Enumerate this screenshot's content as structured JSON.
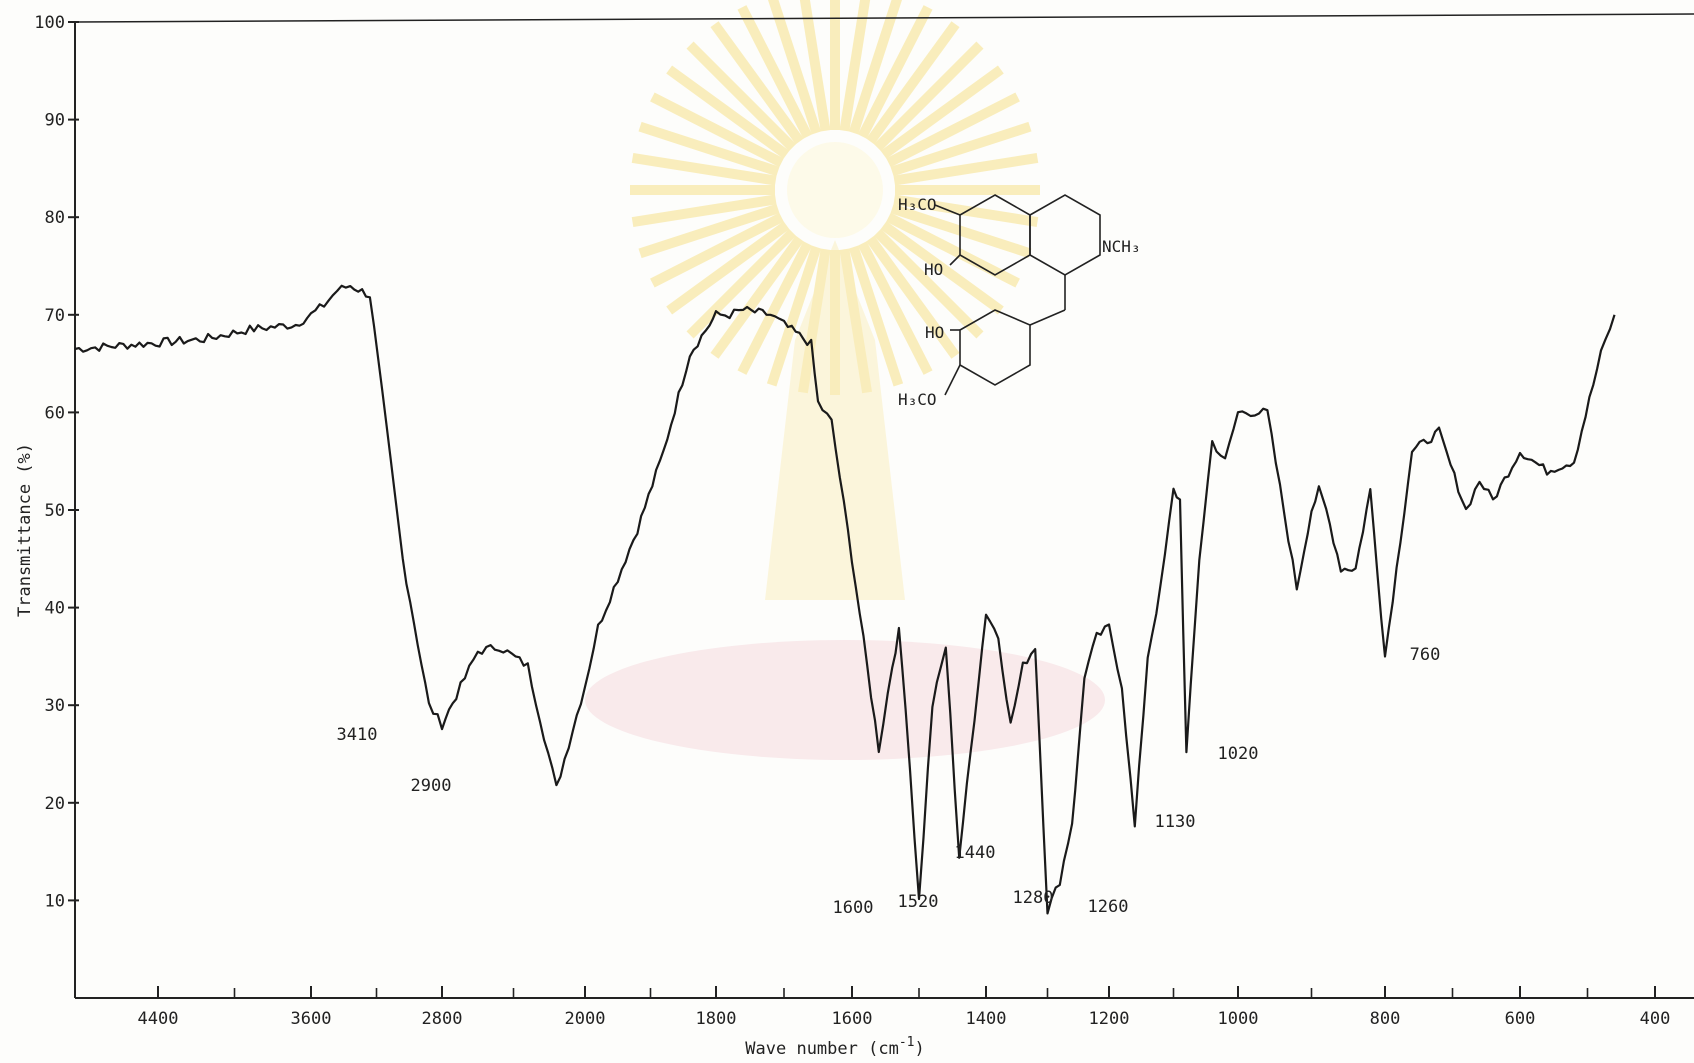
{
  "chart_data": {
    "type": "line",
    "title": "",
    "xlabel": "Wave number (cm",
    "xlabel_sup": "-1",
    "xlabel_close": ")",
    "ylabel": "Transmittance (%)",
    "ylim": [
      0,
      100
    ],
    "y_ticks": [
      "10",
      "20",
      "30",
      "40",
      "50",
      "60",
      "70",
      "80",
      "90",
      "100"
    ],
    "x_ticks": [
      "4400",
      "3600",
      "2800",
      "2000",
      "1800",
      "1600",
      "1400",
      "1200",
      "1000",
      "800",
      "600",
      "400"
    ],
    "grid": false,
    "series": [
      {
        "x": [
          0.0,
          0.3,
          0.6,
          0.9,
          1.0,
          1.1,
          1.2,
          1.3,
          1.45,
          1.7,
          1.9,
          2.0,
          2.1,
          2.25,
          2.4,
          2.6,
          2.8,
          3.0,
          3.1,
          3.4,
          3.6,
          3.8,
          3.95,
          4.0,
          4.1,
          4.2,
          4.4,
          4.5,
          4.7,
          4.75,
          4.85,
          5.0,
          5.2,
          5.3,
          5.35,
          5.4,
          5.5,
          5.6,
          5.7,
          5.8,
          6.0,
          6.1,
          6.2,
          6.3,
          6.4,
          6.5,
          6.6,
          6.7,
          6.75,
          6.8,
          6.9,
          7.0,
          7.1,
          7.2,
          7.3,
          7.4,
          7.5,
          7.55,
          7.6,
          7.7,
          7.8,
          7.9,
          8.0,
          8.2,
          8.4,
          8.5,
          8.55,
          8.6,
          8.7,
          8.8,
          8.9,
          9.0,
          9.2,
          9.4,
          9.6,
          9.7,
          9.8,
          10.0,
          10.2,
          10.4,
          10.6,
          10.7
        ],
        "y": [
          66.5,
          67.5,
          68.5,
          69.0,
          70.0,
          71.0,
          72.5,
          73.0,
          72.0,
          45.0,
          30.0,
          28.0,
          31.0,
          35.5,
          36.0,
          34.0,
          21.5,
          32.0,
          38.0,
          48.0,
          56.0,
          66.0,
          69.0,
          70.0,
          70.0,
          70.5,
          70.0,
          69.0,
          67.0,
          61.0,
          59.0,
          45.0,
          25.5,
          34.0,
          37.5,
          30.0,
          10.0,
          30.0,
          36.0,
          14.5,
          39.5,
          37.0,
          28.0,
          34.0,
          36.0,
          9.0,
          12.0,
          18.0,
          25.0,
          33.0,
          37.0,
          38.0,
          32.0,
          17.5,
          35.0,
          42.0,
          52.0,
          51.0,
          25.0,
          45.0,
          57.0,
          55.0,
          60.0,
          60.0,
          42.0,
          50.0,
          52.0,
          50.0,
          44.0,
          44.0,
          52.0,
          35.0,
          56.0,
          58.0,
          50.0,
          53.0,
          51.0,
          56.0,
          54.0,
          55.0,
          66.0,
          70.0
        ]
      }
    ],
    "annotations": [
      "3410",
      "2900",
      "1600",
      "1520",
      "1440",
      "1280",
      "1260",
      "1130",
      "1020",
      "760"
    ]
  },
  "structure": {
    "labels": {
      "h3co_top": "H₃CO",
      "ho_top": "HO",
      "nch3": "NCH₃",
      "ho_bottom": "HO",
      "h3co_bottom": "H₃CO"
    }
  },
  "colors": {
    "ink": "#222222",
    "paper": "#fdfdfb",
    "watermark_gold": "#f3d24a",
    "watermark_pink": "#f2c6cf"
  }
}
